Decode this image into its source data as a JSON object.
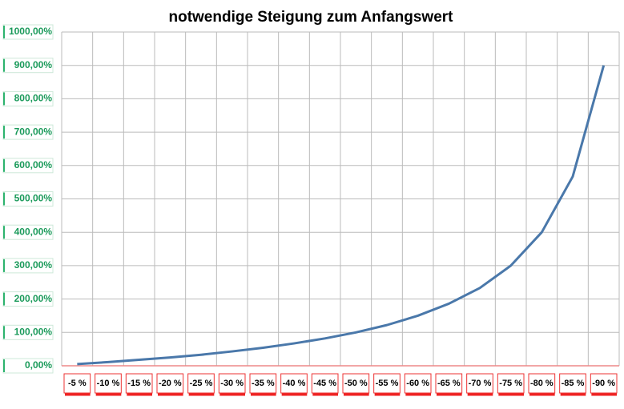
{
  "chart_data": {
    "type": "line",
    "title": "notwendige Steigung zum Anfangswert",
    "categories": [
      "-5 %",
      "-10 %",
      "-15 %",
      "-20 %",
      "-25 %",
      "-30 %",
      "-35 %",
      "-40 %",
      "-45 %",
      "-50 %",
      "-55 %",
      "-60 %",
      "-65 %",
      "-70 %",
      "-75 %",
      "-80 %",
      "-85 %",
      "-90 %"
    ],
    "series": [
      {
        "color": "#4a78aa",
        "values": [
          5,
          11,
          18,
          25,
          33,
          43,
          54,
          67,
          82,
          100,
          122,
          150,
          186,
          233,
          300,
          400,
          567,
          900
        ]
      }
    ],
    "ylim": [
      0,
      1000
    ],
    "yticks": [
      {
        "value": 0,
        "label": "0,00%"
      },
      {
        "value": 100,
        "label": "100,00%"
      },
      {
        "value": 200,
        "label": "200,00%"
      },
      {
        "value": 300,
        "label": "300,00%"
      },
      {
        "value": 400,
        "label": "400,00%"
      },
      {
        "value": 500,
        "label": "500,00%"
      },
      {
        "value": 600,
        "label": "600,00%"
      },
      {
        "value": 700,
        "label": "700,00%"
      },
      {
        "value": 800,
        "label": "800,00%"
      },
      {
        "value": 900,
        "label": "900,00%"
      },
      {
        "value": 1000,
        "label": "1000,00%"
      }
    ],
    "grid": true
  }
}
